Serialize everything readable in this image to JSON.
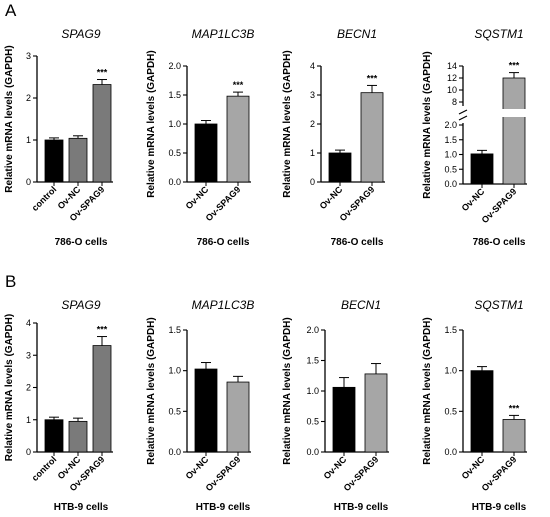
{
  "panels": [
    {
      "letter": "A"
    },
    {
      "letter": "B"
    }
  ],
  "chart_data": [
    {
      "type": "bar",
      "panel": "A",
      "title": "SPAG9",
      "ylabel": "Relative mRNA levels (GAPDH)",
      "xlabel": "786-O cells",
      "categories": [
        "control",
        "Ov-NC",
        "Ov-SPAG9"
      ],
      "values": [
        1.0,
        1.04,
        2.32
      ],
      "errors": [
        0.05,
        0.06,
        0.12
      ],
      "significance": [
        "",
        "",
        "***"
      ],
      "bar_colors": [
        "#000000",
        "#7a7a7a",
        "#7a7a7a"
      ],
      "ylim": [
        0,
        3
      ],
      "yticks": [
        "0",
        "1",
        "2",
        "3"
      ]
    },
    {
      "type": "bar",
      "panel": "A",
      "title": "MAP1LC3B",
      "ylabel": "Relative mRNA levels (GAPDH)",
      "xlabel": "786-O cells",
      "categories": [
        "Ov-NC",
        "Ov-SPAG9"
      ],
      "values": [
        1.0,
        1.48
      ],
      "errors": [
        0.06,
        0.07
      ],
      "significance": [
        "",
        "***"
      ],
      "bar_colors": [
        "#000000",
        "#a6a6a6"
      ],
      "ylim": [
        0,
        2.0
      ],
      "yticks": [
        "0.0",
        "0.5",
        "1.0",
        "1.5",
        "2.0"
      ]
    },
    {
      "type": "bar",
      "panel": "A",
      "title": "BECN1",
      "ylabel": "Relative mRNA levels (GAPDH)",
      "xlabel": "786-O cells",
      "categories": [
        "Ov-NC",
        "Ov-SPAG9"
      ],
      "values": [
        1.0,
        3.08
      ],
      "errors": [
        0.1,
        0.25
      ],
      "significance": [
        "",
        "***"
      ],
      "bar_colors": [
        "#000000",
        "#a6a6a6"
      ],
      "ylim": [
        0,
        4
      ],
      "yticks": [
        "0",
        "1",
        "2",
        "3",
        "4"
      ]
    },
    {
      "type": "bar",
      "panel": "A",
      "title": "SQSTM1",
      "ylabel": "Relative mRNA levels (GAPDH)",
      "xlabel": "786-O cells",
      "categories": [
        "Ov-NC",
        "Ov-SPAG9"
      ],
      "values": [
        1.02,
        12.0
      ],
      "errors": [
        0.12,
        0.9
      ],
      "significance": [
        "",
        "***"
      ],
      "bar_colors": [
        "#000000",
        "#a6a6a6"
      ],
      "y_axis_break": [
        2.0,
        8
      ],
      "yticks": [
        "0.0",
        "0.5",
        "1.0",
        "1.5",
        "2.0",
        "8",
        "10",
        "12",
        "14"
      ]
    },
    {
      "type": "bar",
      "panel": "B",
      "title": "SPAG9",
      "ylabel": "Relative mRNA levels (GAPDH)",
      "xlabel": "HTB-9 cells",
      "categories": [
        "control",
        "Ov-NC",
        "Ov-SPAG9"
      ],
      "values": [
        1.0,
        0.95,
        3.3
      ],
      "errors": [
        0.08,
        0.1,
        0.28
      ],
      "significance": [
        "",
        "",
        "***"
      ],
      "bar_colors": [
        "#000000",
        "#7a7a7a",
        "#7a7a7a"
      ],
      "ylim": [
        0,
        4
      ],
      "yticks": [
        "0",
        "1",
        "2",
        "3",
        "4"
      ]
    },
    {
      "type": "bar",
      "panel": "B",
      "title": "MAP1LC3B",
      "ylabel": "Relative mRNA levels (GAPDH)",
      "xlabel": "HTB-9 cells",
      "categories": [
        "Ov-NC",
        "Ov-SPAG9"
      ],
      "values": [
        1.02,
        0.86
      ],
      "errors": [
        0.08,
        0.07
      ],
      "significance": [
        "",
        ""
      ],
      "bar_colors": [
        "#000000",
        "#a6a6a6"
      ],
      "ylim": [
        0,
        1.5
      ],
      "yticks": [
        "0.0",
        "0.5",
        "1.0",
        "1.5"
      ]
    },
    {
      "type": "bar",
      "panel": "B",
      "title": "BECN1",
      "ylabel": "Relative mRNA levels (GAPDH)",
      "xlabel": "HTB-9 cells",
      "categories": [
        "Ov-NC",
        "Ov-SPAG9"
      ],
      "values": [
        1.06,
        1.28
      ],
      "errors": [
        0.16,
        0.17
      ],
      "significance": [
        "",
        ""
      ],
      "bar_colors": [
        "#000000",
        "#a6a6a6"
      ],
      "ylim": [
        0,
        2.0
      ],
      "yticks": [
        "0.0",
        "0.5",
        "1.0",
        "1.5",
        "2.0"
      ]
    },
    {
      "type": "bar",
      "panel": "B",
      "title": "SQSTM1",
      "ylabel": "Relative mRNA levels (GAPDH)",
      "xlabel": "HTB-9 cells",
      "categories": [
        "Ov-NC",
        "Ov-SPAG9"
      ],
      "values": [
        1.0,
        0.4
      ],
      "errors": [
        0.05,
        0.05
      ],
      "significance": [
        "",
        "***"
      ],
      "bar_colors": [
        "#000000",
        "#a6a6a6"
      ],
      "ylim": [
        0,
        1.5
      ],
      "yticks": [
        "0.0",
        "0.5",
        "1.0",
        "1.5"
      ]
    }
  ]
}
